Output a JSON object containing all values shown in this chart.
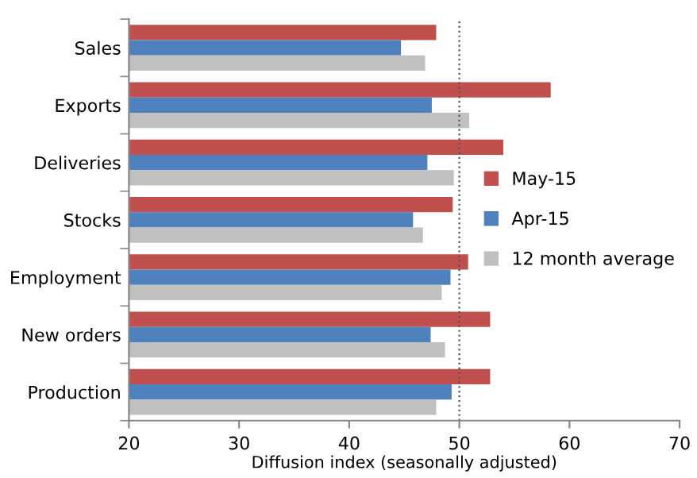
{
  "chart_data": {
    "type": "bar",
    "orientation": "horizontal",
    "xlabel": "Diffusion index (seasonally adjusted)",
    "categories": [
      "Sales",
      "Exports",
      "Deliveries",
      "Stocks",
      "Employment",
      "New orders",
      "Production"
    ],
    "series": [
      {
        "name": "May-15",
        "color": "#c0504d",
        "values": [
          47.9,
          58.3,
          54.0,
          49.4,
          50.8,
          52.8,
          52.8
        ]
      },
      {
        "name": "Apr-15",
        "color": "#4f81bd",
        "values": [
          44.7,
          47.5,
          47.1,
          45.8,
          49.2,
          47.4,
          49.3
        ]
      },
      {
        "name": "12 month average",
        "color": "#c0c0c0",
        "values": [
          46.9,
          50.9,
          49.5,
          46.7,
          48.4,
          48.7,
          47.9
        ]
      }
    ],
    "xlim": [
      20,
      70
    ],
    "xticks": [
      20,
      30,
      40,
      50,
      60,
      70
    ],
    "ref_lines": [
      {
        "axis": "x",
        "value": 50,
        "line_style": "dotted",
        "color": "#555555"
      }
    ],
    "grid": false,
    "legend": "right"
  }
}
